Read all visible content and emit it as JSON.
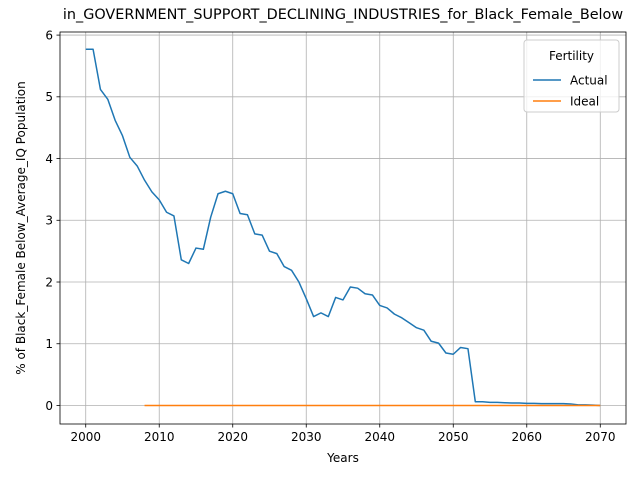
{
  "chart_data": {
    "type": "line",
    "title": "in_GOVERNMENT_SUPPORT_DECLINING_INDUSTRIES_for_Black_Female_Below",
    "xlabel": "Years",
    "ylabel": "% of Black_Female Below_Average_IQ Population",
    "xlim": [
      1996.5,
      2073.5
    ],
    "ylim": [
      -0.3,
      6.05
    ],
    "xticks": [
      2000,
      2010,
      2020,
      2030,
      2040,
      2050,
      2060,
      2070
    ],
    "yticks": [
      0,
      1,
      2,
      3,
      4,
      5,
      6
    ],
    "grid": true,
    "legend": {
      "title": "Fertility",
      "placement": "upper right"
    },
    "series": [
      {
        "name": "Actual",
        "color": "#1f77b4",
        "x": [
          2000,
          2001,
          2002,
          2003,
          2004,
          2005,
          2006,
          2007,
          2008,
          2009,
          2010,
          2011,
          2012,
          2013,
          2014,
          2015,
          2016,
          2017,
          2018,
          2019,
          2020,
          2021,
          2022,
          2023,
          2024,
          2025,
          2026,
          2027,
          2028,
          2029,
          2030,
          2031,
          2032,
          2033,
          2034,
          2035,
          2036,
          2037,
          2038,
          2039,
          2040,
          2041,
          2042,
          2043,
          2044,
          2045,
          2046,
          2047,
          2048,
          2049,
          2050,
          2051,
          2052,
          2053,
          2054,
          2055,
          2056,
          2057,
          2058,
          2059,
          2060,
          2061,
          2062,
          2063,
          2064,
          2065,
          2066,
          2067,
          2068,
          2069,
          2070
        ],
        "values": [
          5.77,
          5.77,
          5.12,
          4.96,
          4.62,
          4.37,
          4.02,
          3.88,
          3.65,
          3.46,
          3.33,
          3.13,
          3.07,
          2.36,
          2.3,
          2.55,
          2.53,
          3.05,
          3.43,
          3.47,
          3.43,
          3.11,
          3.09,
          2.78,
          2.76,
          2.5,
          2.46,
          2.25,
          2.19,
          2.0,
          1.73,
          1.44,
          1.5,
          1.44,
          1.75,
          1.71,
          1.92,
          1.9,
          1.81,
          1.79,
          1.62,
          1.58,
          1.48,
          1.42,
          1.34,
          1.26,
          1.22,
          1.04,
          1.01,
          0.85,
          0.83,
          0.94,
          0.92,
          0.06,
          0.06,
          0.05,
          0.05,
          0.045,
          0.04,
          0.04,
          0.035,
          0.035,
          0.03,
          0.03,
          0.03,
          0.03,
          0.025,
          0.01,
          0.01,
          0.005,
          0.0
        ]
      },
      {
        "name": "Ideal",
        "color": "#ff7f0e",
        "x": [
          2008,
          2070
        ],
        "values": [
          0.0,
          0.0
        ]
      }
    ]
  }
}
